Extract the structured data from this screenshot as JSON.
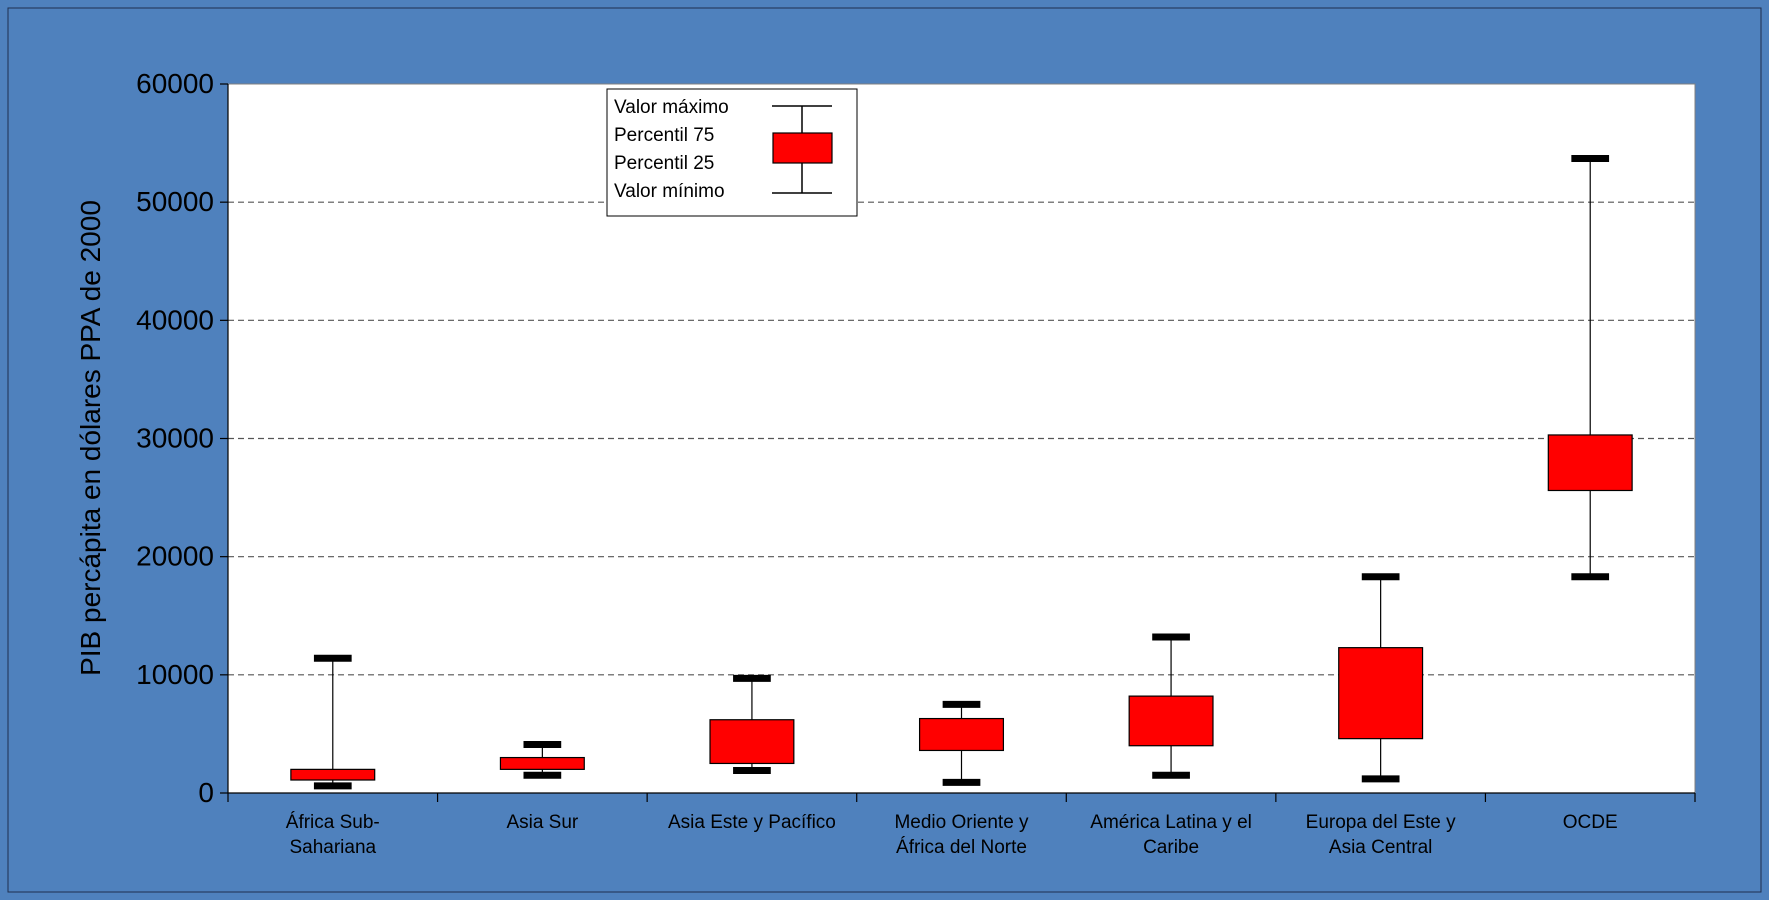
{
  "colors": {
    "background": "#4F81BD",
    "plot_background": "#ffffff",
    "box_fill": "#ff0000",
    "grid": "#555555",
    "text": "#000000"
  },
  "chart_data": {
    "type": "box",
    "title": "",
    "xlabel": "",
    "ylabel": "PIB percápita en dólares PPA de 2000",
    "ylim": [
      0,
      60000
    ],
    "yticks": [
      0,
      10000,
      20000,
      30000,
      40000,
      50000,
      60000
    ],
    "ytick_labels": [
      "0",
      "10000",
      "20000",
      "30000",
      "40000",
      "50000",
      "60000"
    ],
    "grid": "horizontal dashed",
    "categories": [
      [
        "África Sub-",
        "Sahariana"
      ],
      [
        "Asia Sur"
      ],
      [
        "Asia Este y Pacífico"
      ],
      [
        "Medio Oriente y",
        "África del Norte"
      ],
      [
        "América Latina y el",
        "Caribe"
      ],
      [
        "Europa del Este y",
        "Asia Central"
      ],
      [
        "OCDE"
      ]
    ],
    "boxes": [
      {
        "max": 11400,
        "p75": 2000,
        "p25": 1100,
        "min": 600
      },
      {
        "max": 4100,
        "p75": 3000,
        "p25": 2000,
        "min": 1500
      },
      {
        "max": 9700,
        "p75": 6200,
        "p25": 2500,
        "min": 1900
      },
      {
        "max": 7500,
        "p75": 6300,
        "p25": 3600,
        "min": 900
      },
      {
        "max": 13200,
        "p75": 8200,
        "p25": 4000,
        "min": 1500
      },
      {
        "max": 18300,
        "p75": 12300,
        "p25": 4600,
        "min": 1200
      },
      {
        "max": 53700,
        "p75": 30300,
        "p25": 25600,
        "min": 18300
      }
    ],
    "legend": {
      "placement": "top-center",
      "entries": [
        "Valor máximo",
        "Percentil 75",
        "Percentil 25",
        "Valor mínimo"
      ]
    }
  }
}
